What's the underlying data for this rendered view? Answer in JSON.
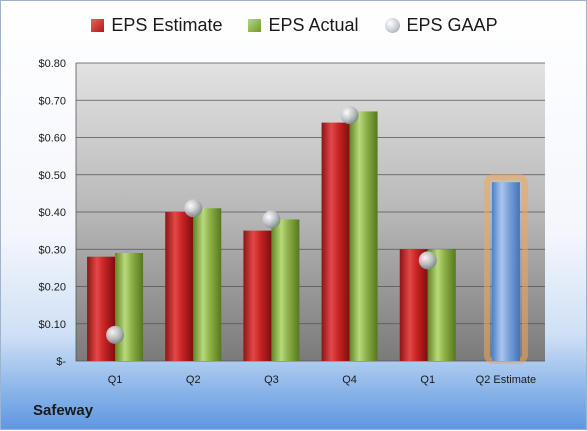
{
  "chart_data": {
    "type": "bar",
    "categories": [
      "Q1",
      "Q2",
      "Q3",
      "Q4",
      "Q1",
      "Q2 Estimate"
    ],
    "series": [
      {
        "name": "EPS Estimate",
        "values": [
          0.28,
          0.4,
          0.35,
          0.64,
          0.3,
          null
        ],
        "color": "#c0282a"
      },
      {
        "name": "EPS Actual",
        "values": [
          0.29,
          0.41,
          0.38,
          0.67,
          0.3,
          null
        ],
        "color": "#8db048"
      },
      {
        "name": "EPS GAAP",
        "values": [
          0.07,
          0.41,
          0.38,
          0.66,
          0.27,
          null
        ],
        "color": "#c9cdd3",
        "marker": "sphere"
      }
    ],
    "projection": {
      "category": "Q2 Estimate",
      "value": 0.48,
      "color": "#6f9ad6",
      "glow": "#f2a555"
    },
    "ylim": [
      0,
      0.8
    ],
    "yticks": [
      0,
      0.1,
      0.2,
      0.3,
      0.4,
      0.5,
      0.6,
      0.7,
      0.8
    ],
    "ytick_labels": [
      "$-",
      "$0.10",
      "$0.20",
      "$0.30",
      "$0.40",
      "$0.50",
      "$0.60",
      "$0.70",
      "$0.80"
    ],
    "grid": true,
    "legend_position": "top"
  },
  "footer": {
    "company": "Safeway"
  }
}
